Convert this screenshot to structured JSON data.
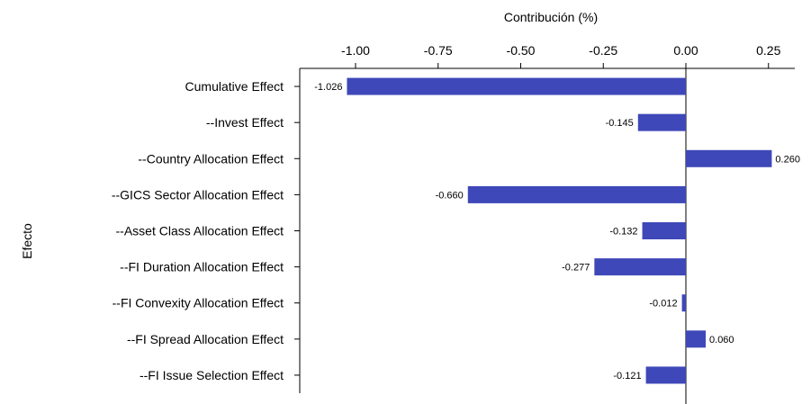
{
  "chart_data": {
    "type": "bar",
    "orientation": "horizontal",
    "xlabel": "Contribución (%)",
    "ylabel": "Efecto",
    "xlim": [
      -1.15,
      0.33
    ],
    "xticks": [
      -1.0,
      -0.75,
      -0.5,
      -0.25,
      0.0,
      0.25
    ],
    "xtick_labels": [
      "-1.00",
      "-0.75",
      "-0.50",
      "-0.25",
      "0.00",
      "0.25"
    ],
    "categories": [
      "Cumulative Effect",
      "--Invest Effect",
      "--Country Allocation Effect",
      "--GICS Sector Allocation Effect",
      "--Asset Class Allocation Effect",
      "--FI Duration Allocation Effect",
      "--FI Convexity Allocation Effect",
      "--FI Spread Allocation Effect",
      "--FI Issue Selection Effect"
    ],
    "values": [
      -1.026,
      -0.145,
      0.26,
      -0.66,
      -0.132,
      -0.277,
      -0.012,
      0.06,
      -0.121
    ],
    "value_labels": [
      "-1.026",
      "-0.145",
      "0.260",
      "-0.660",
      "-0.132",
      "-0.277",
      "-0.012",
      "0.060",
      "-0.121"
    ],
    "grid": false,
    "bar_color": "#3f48b8",
    "x_axis_position": "top"
  }
}
